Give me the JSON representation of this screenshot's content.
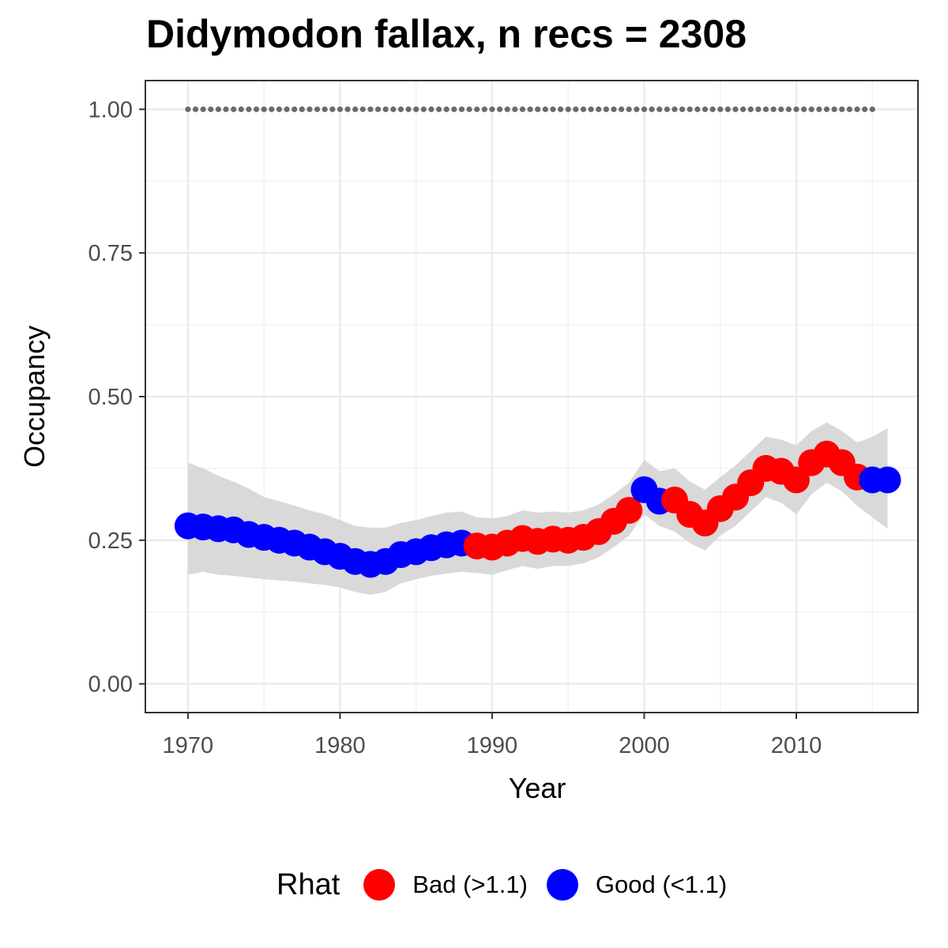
{
  "chart_data": {
    "type": "line",
    "title": "Didymodon fallax, n recs = 2308",
    "xlabel": "Year",
    "ylabel": "Occupancy",
    "xlim": [
      1967.2,
      2018.0
    ],
    "ylim": [
      -0.05,
      1.05
    ],
    "x_ticks": [
      1970,
      1980,
      1990,
      2000,
      2010
    ],
    "x_tick_labels": [
      "1970",
      "1980",
      "1990",
      "2000",
      "2010"
    ],
    "y_ticks": [
      0.0,
      0.25,
      0.5,
      0.75,
      1.0
    ],
    "y_tick_labels": [
      "0.00",
      "0.25",
      "0.50",
      "0.75",
      "1.00"
    ],
    "grid": true,
    "legend": {
      "title": "Rhat",
      "position": "bottom",
      "entries": [
        {
          "label": "Bad (>1.1)",
          "color": "#ff0000"
        },
        {
          "label": "Good (<1.1)",
          "color": "#0000ff"
        }
      ]
    },
    "colors": {
      "Bad": "#ff0000",
      "Good": "#0000ff",
      "ribbon": "#d9d9d9",
      "reference": "#6b6b6b"
    },
    "x": [
      1970,
      1971,
      1972,
      1973,
      1974,
      1975,
      1976,
      1977,
      1978,
      1979,
      1980,
      1981,
      1982,
      1983,
      1984,
      1985,
      1986,
      1987,
      1988,
      1989,
      1990,
      1991,
      1992,
      1993,
      1994,
      1995,
      1996,
      1997,
      1998,
      1999,
      2000,
      2001,
      2002,
      2003,
      2004,
      2005,
      2006,
      2007,
      2008,
      2009,
      2010,
      2011,
      2012,
      2013,
      2014,
      2015,
      2016
    ],
    "occupancy": [
      0.275,
      0.273,
      0.27,
      0.268,
      0.26,
      0.255,
      0.25,
      0.245,
      0.238,
      0.23,
      0.222,
      0.213,
      0.208,
      0.213,
      0.225,
      0.23,
      0.237,
      0.242,
      0.245,
      0.24,
      0.238,
      0.245,
      0.253,
      0.248,
      0.252,
      0.25,
      0.255,
      0.265,
      0.283,
      0.302,
      0.338,
      0.318,
      0.32,
      0.295,
      0.28,
      0.305,
      0.325,
      0.35,
      0.375,
      0.37,
      0.355,
      0.385,
      0.4,
      0.385,
      0.36,
      0.355,
      0.355
    ],
    "lower": [
      0.19,
      0.195,
      0.19,
      0.188,
      0.185,
      0.182,
      0.18,
      0.178,
      0.175,
      0.172,
      0.168,
      0.16,
      0.155,
      0.16,
      0.175,
      0.182,
      0.188,
      0.192,
      0.195,
      0.193,
      0.19,
      0.198,
      0.205,
      0.2,
      0.205,
      0.205,
      0.21,
      0.22,
      0.238,
      0.258,
      0.295,
      0.275,
      0.265,
      0.245,
      0.232,
      0.258,
      0.275,
      0.3,
      0.325,
      0.315,
      0.295,
      0.33,
      0.35,
      0.335,
      0.31,
      0.29,
      0.27
    ],
    "upper": [
      0.385,
      0.375,
      0.362,
      0.352,
      0.34,
      0.325,
      0.318,
      0.31,
      0.302,
      0.295,
      0.285,
      0.275,
      0.272,
      0.272,
      0.28,
      0.285,
      0.292,
      0.298,
      0.3,
      0.29,
      0.288,
      0.292,
      0.302,
      0.298,
      0.3,
      0.298,
      0.302,
      0.312,
      0.33,
      0.35,
      0.39,
      0.37,
      0.375,
      0.352,
      0.338,
      0.36,
      0.38,
      0.405,
      0.43,
      0.425,
      0.415,
      0.44,
      0.455,
      0.44,
      0.42,
      0.43,
      0.445
    ],
    "rhat": [
      "Good",
      "Good",
      "Good",
      "Good",
      "Good",
      "Good",
      "Good",
      "Good",
      "Good",
      "Good",
      "Good",
      "Good",
      "Good",
      "Good",
      "Good",
      "Good",
      "Good",
      "Good",
      "Good",
      "Bad",
      "Bad",
      "Bad",
      "Bad",
      "Bad",
      "Bad",
      "Bad",
      "Bad",
      "Bad",
      "Bad",
      "Bad",
      "Good",
      "Good",
      "Bad",
      "Bad",
      "Bad",
      "Bad",
      "Bad",
      "Bad",
      "Bad",
      "Bad",
      "Bad",
      "Bad",
      "Bad",
      "Bad",
      "Bad",
      "Good",
      "Good"
    ],
    "reference_line": {
      "y": 1.0,
      "x_start": 1970,
      "x_end": 2015
    }
  }
}
